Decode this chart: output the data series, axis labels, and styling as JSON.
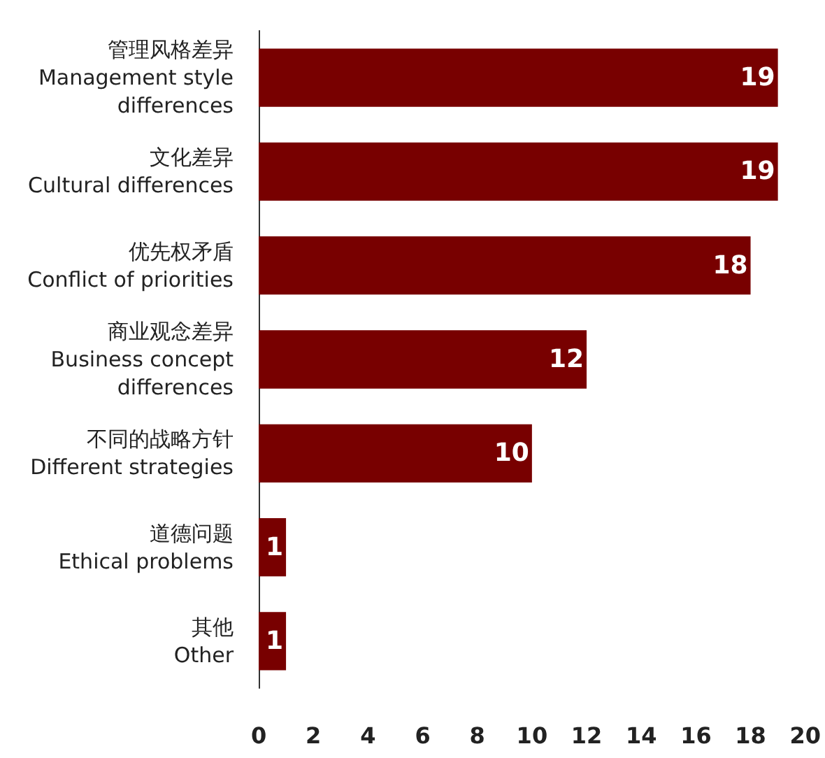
{
  "chart_data": {
    "type": "bar",
    "orientation": "horizontal",
    "categories": [
      "管理风格差异\nManagement style\ndifferences",
      "文化差异\nCultural differences",
      "优先权矛盾\nConflict of priorities",
      "商业观念差异\nBusiness concept\ndifferences",
      "不同的战略方针\nDifferent strategies",
      "道德问题\nEthical problems",
      "其他\nOther"
    ],
    "values": [
      19,
      19,
      18,
      12,
      10,
      1,
      1
    ],
    "color": "#780000",
    "xlim": [
      0,
      20
    ],
    "xticks": [
      0,
      2,
      4,
      6,
      8,
      10,
      12,
      14,
      16,
      18,
      20
    ],
    "data_labels": true,
    "grid": false
  }
}
